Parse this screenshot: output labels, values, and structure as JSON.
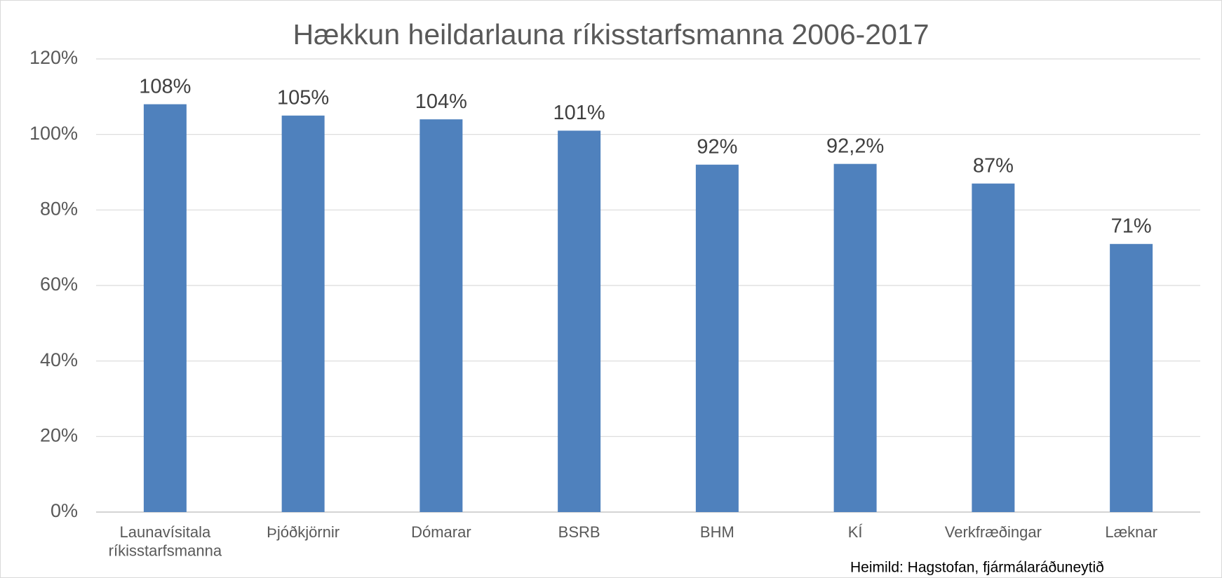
{
  "chart_data": {
    "type": "bar",
    "title": "Hækkun heildarlauna ríkisstarfsmanna 2006-2017",
    "categories": [
      "Launavísitala ríkisstarfsmanna",
      "Þjóðkjörnir",
      "Dómarar",
      "BSRB",
      "BHM",
      "KÍ",
      "Verkfræðingar",
      "Læknar"
    ],
    "values": [
      108,
      105,
      104,
      101,
      92,
      92.2,
      87,
      71
    ],
    "value_labels": [
      "108%",
      "105%",
      "104%",
      "101%",
      "92%",
      "92,2%",
      "87%",
      "71%"
    ],
    "color": "#4f81bd",
    "ylim": [
      0,
      120
    ],
    "yticks": [
      {
        "value": 0,
        "label": "0%"
      },
      {
        "value": 20,
        "label": "20%"
      },
      {
        "value": 40,
        "label": "40%"
      },
      {
        "value": 60,
        "label": "60%"
      },
      {
        "value": 80,
        "label": "80%"
      },
      {
        "value": 100,
        "label": "100%"
      },
      {
        "value": 120,
        "label": "120%"
      }
    ],
    "grid": true,
    "source": "Heimild: Hagstofan, fjármálaráðuneytið"
  }
}
